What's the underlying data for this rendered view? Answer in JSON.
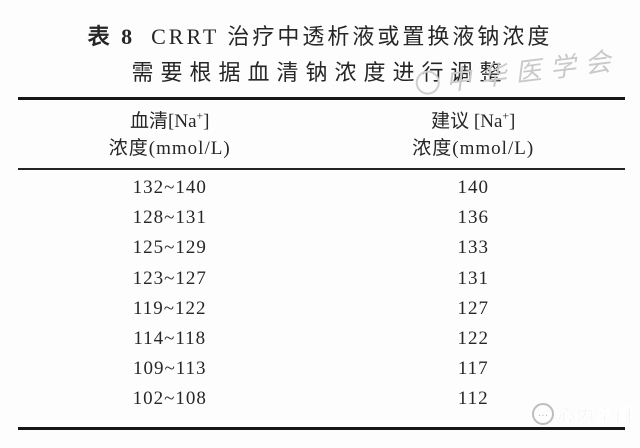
{
  "title": {
    "tag": "表 8",
    "line1_rest": "CRRT 治疗中透析液或置换液钠浓度",
    "line2": "需要根据血清钠浓度进行调整"
  },
  "watermarks": {
    "top_text": "中华医学会",
    "bottom_text": "心内空间",
    "bottom_icon_glyph": "…"
  },
  "table": {
    "header": {
      "col1": {
        "pre": "血清[Na",
        "sup": "+",
        "post": "]",
        "line2": "浓度(mmol/L)"
      },
      "col2": {
        "pre": "建议 [Na",
        "sup": "+",
        "post": "]",
        "line2": "浓度(mmol/L)"
      }
    },
    "rows": [
      {
        "serum": "132~140",
        "recommended": "140"
      },
      {
        "serum": "128~131",
        "recommended": "136"
      },
      {
        "serum": "125~129",
        "recommended": "133"
      },
      {
        "serum": "123~127",
        "recommended": "131"
      },
      {
        "serum": "119~122",
        "recommended": "127"
      },
      {
        "serum": "114~118",
        "recommended": "122"
      },
      {
        "serum": "109~113",
        "recommended": "117"
      },
      {
        "serum": "102~108",
        "recommended": "112"
      }
    ]
  },
  "colors": {
    "text": "#262626",
    "rule": "#161616",
    "watermark_top": "#c9c9c9",
    "watermark_bottom": "#b3b3b3",
    "background": "#fdfdfd"
  }
}
